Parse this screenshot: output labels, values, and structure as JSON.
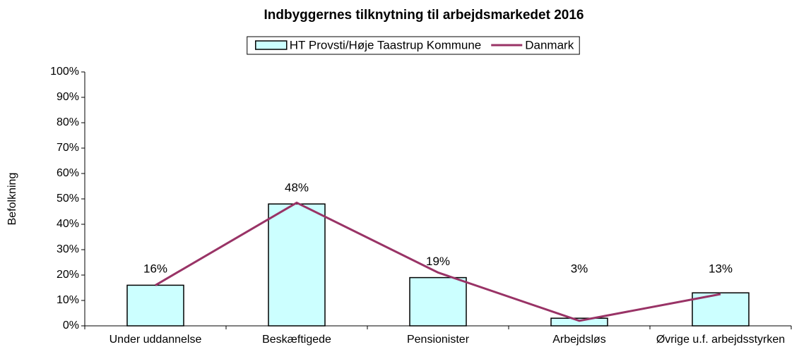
{
  "chart_data": {
    "type": "bar_line",
    "title": "Indbyggernes tilknytning til arbejdsmarkedet 2016",
    "y_label": "Befolkning",
    "categories": [
      "Under uddannelse",
      "Beskæftigede",
      "Pensionister",
      "Arbejdsløs",
      "Øvrige u.f. arbejdsstyrken"
    ],
    "series": [
      {
        "name": "HT Provsti/Høje Taastrup Kommune",
        "type": "bar",
        "color": "#ccffff",
        "values": [
          16,
          48,
          19,
          3,
          13
        ],
        "value_labels": [
          "16%",
          "48%",
          "19%",
          "3%",
          "13%"
        ]
      },
      {
        "name": "Danmark",
        "type": "line",
        "color": "#993366",
        "values": [
          16,
          48.5,
          21,
          2,
          12.5
        ]
      }
    ],
    "ylim": [
      0,
      100
    ],
    "yticks": [
      {
        "value": 0,
        "label": "0%"
      },
      {
        "value": 10,
        "label": "10%"
      },
      {
        "value": 20,
        "label": "20%"
      },
      {
        "value": 30,
        "label": "30%"
      },
      {
        "value": 40,
        "label": "40%"
      },
      {
        "value": 50,
        "label": "50%"
      },
      {
        "value": 60,
        "label": "60%"
      },
      {
        "value": 70,
        "label": "70%"
      },
      {
        "value": 80,
        "label": "80%"
      },
      {
        "value": 90,
        "label": "90%"
      },
      {
        "value": 100,
        "label": "100%"
      }
    ],
    "legend": "top"
  }
}
